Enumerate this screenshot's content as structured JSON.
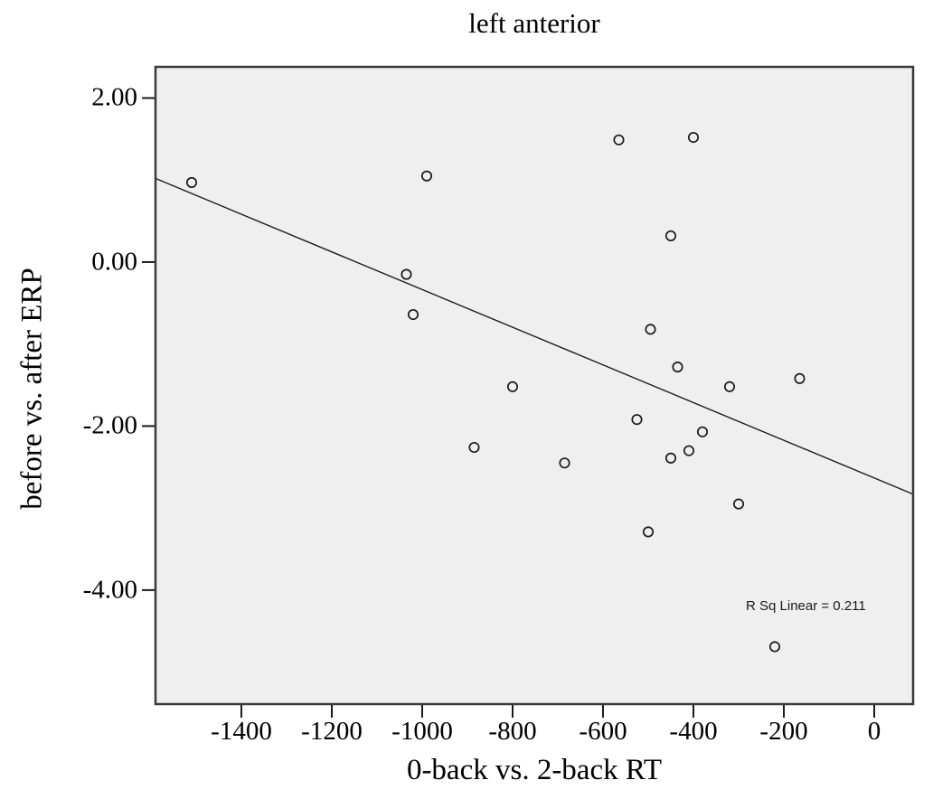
{
  "figure": {
    "title": "left anterior",
    "xlabel": "0-back vs. 2-back RT",
    "ylabel": "before vs. after ERP",
    "annotation": "R Sq Linear = 0.211"
  },
  "chart_data": {
    "type": "scatter",
    "title": "left anterior",
    "xlabel": "0-back vs. 2-back RT",
    "ylabel": "before vs. after ERP",
    "xlim": [
      -1590,
      86
    ],
    "ylim": [
      -5.39,
      2.38
    ],
    "grid": false,
    "legend": null,
    "x_ticks": [
      {
        "value": -1400,
        "label": "-1400"
      },
      {
        "value": -1200,
        "label": "-1200"
      },
      {
        "value": -1000,
        "label": "-1000"
      },
      {
        "value": -800,
        "label": "-800"
      },
      {
        "value": -600,
        "label": "-600"
      },
      {
        "value": -400,
        "label": "-400"
      },
      {
        "value": -200,
        "label": "-200"
      },
      {
        "value": 0,
        "label": "0"
      }
    ],
    "y_ticks": [
      {
        "value": 2,
        "label": "2.00"
      },
      {
        "value": 0,
        "label": "0.00"
      },
      {
        "value": -2,
        "label": "-2.00"
      },
      {
        "value": -4,
        "label": "-4.00"
      }
    ],
    "points": [
      {
        "x": -1510,
        "y": 0.97
      },
      {
        "x": -990,
        "y": 1.05
      },
      {
        "x": -565,
        "y": 1.49
      },
      {
        "x": -400,
        "y": 1.52
      },
      {
        "x": -450,
        "y": 0.32
      },
      {
        "x": -1035,
        "y": -0.15
      },
      {
        "x": -1020,
        "y": -0.64
      },
      {
        "x": -495,
        "y": -0.82
      },
      {
        "x": -435,
        "y": -1.28
      },
      {
        "x": -800,
        "y": -1.52
      },
      {
        "x": -320,
        "y": -1.52
      },
      {
        "x": -165,
        "y": -1.42
      },
      {
        "x": -525,
        "y": -1.92
      },
      {
        "x": -380,
        "y": -2.07
      },
      {
        "x": -885,
        "y": -2.26
      },
      {
        "x": -450,
        "y": -2.39
      },
      {
        "x": -410,
        "y": -2.3
      },
      {
        "x": -685,
        "y": -2.45
      },
      {
        "x": -300,
        "y": -2.95
      },
      {
        "x": -500,
        "y": -3.29
      },
      {
        "x": -220,
        "y": -4.69
      }
    ],
    "regression_line": {
      "x1": -1590,
      "y1": 1.02,
      "x2": 86,
      "y2": -2.83,
      "r_squared": 0.211,
      "label": "R Sq Linear = 0.211"
    }
  },
  "style": {
    "plot_bg": "#efefef",
    "frame_color": "#3a3a3a",
    "tick_color": "#1a1a1a",
    "marker_color": "#1a1a1a",
    "line_color": "#1c1c1c",
    "text_color": "#000000"
  }
}
